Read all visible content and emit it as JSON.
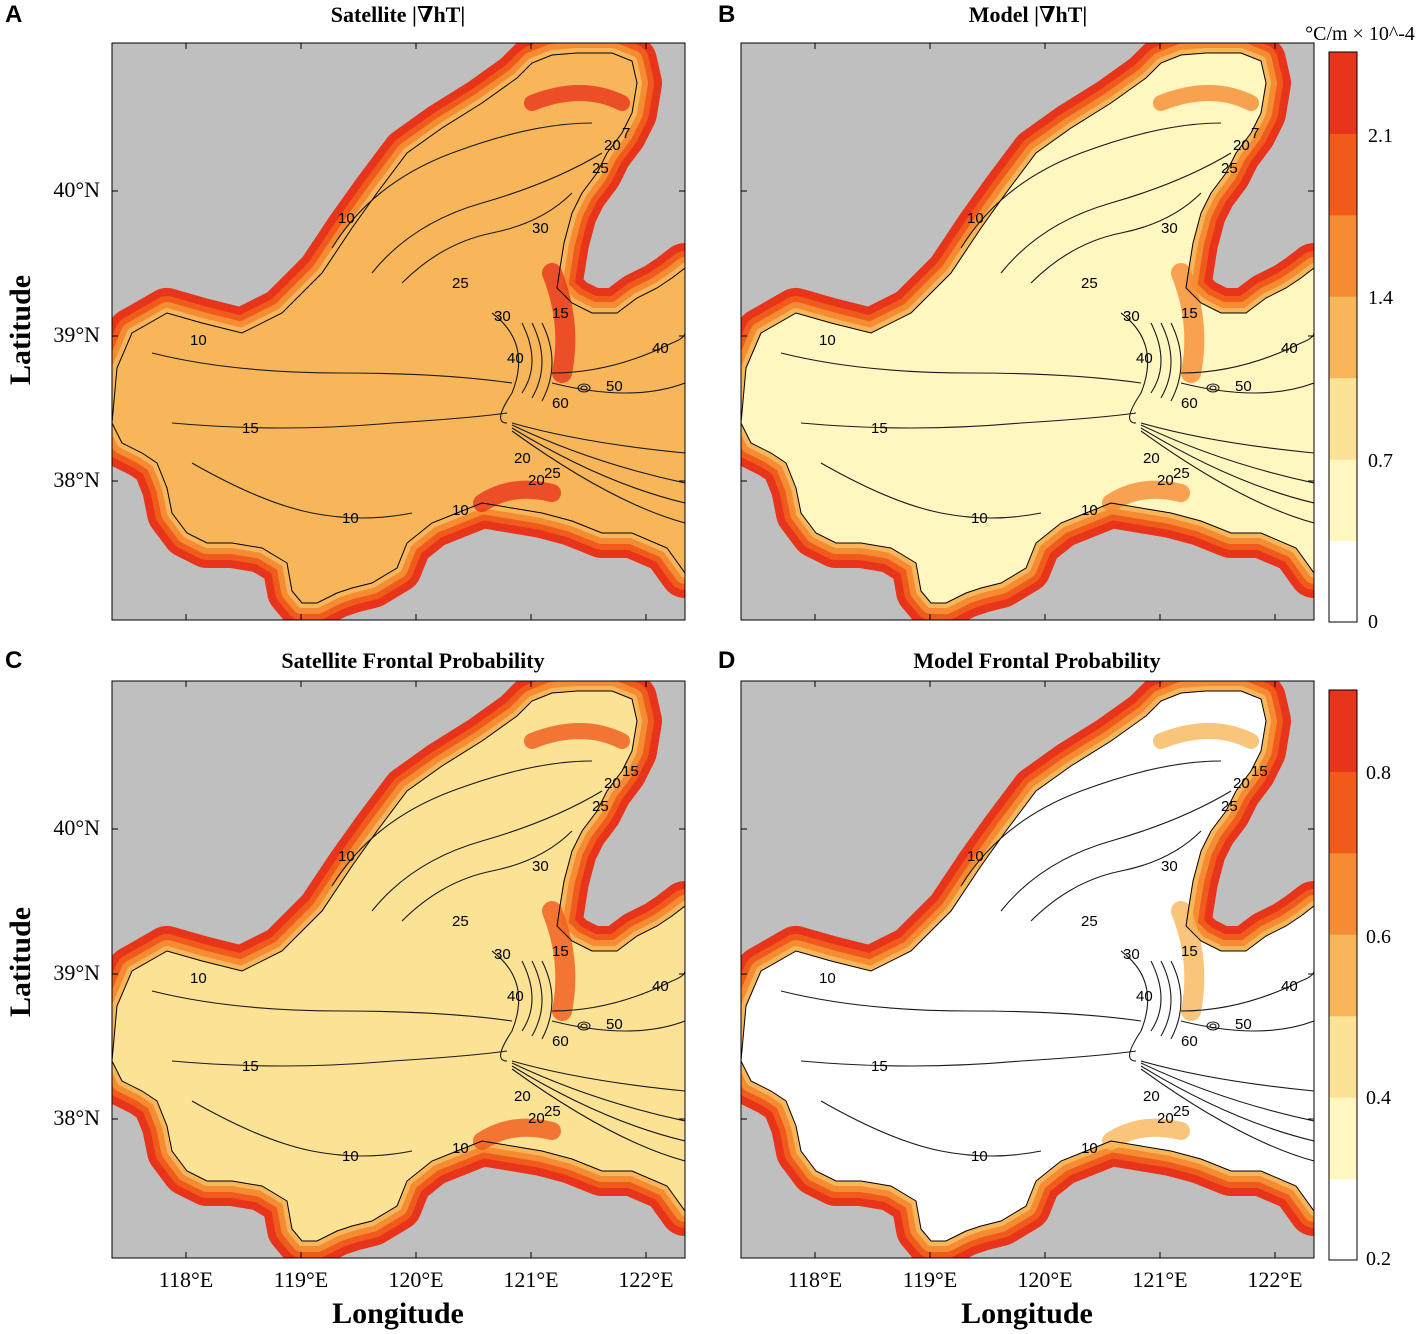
{
  "chart_data": [
    {
      "type": "heatmap",
      "panel": "A",
      "title": "Satellite |∇hT|",
      "xlabel": "",
      "ylabel": "Latitude",
      "xticks": [],
      "yticks": [
        "38°N",
        "39°N",
        "40°N"
      ],
      "xlim": [
        117.4,
        122.3
      ],
      "ylim": [
        37.1,
        41.1
      ],
      "colorbar": null,
      "contour_labels": [
        "10",
        "10",
        "10",
        "10",
        "15",
        "15",
        "20",
        "20",
        "20",
        "25",
        "25",
        "25",
        "30",
        "30",
        "40",
        "40",
        "50",
        "60",
        "7"
      ]
    },
    {
      "type": "heatmap",
      "panel": "B",
      "title": "Model |∇hT|",
      "xlabel": "",
      "ylabel": "",
      "xticks": [],
      "yticks": [],
      "xlim": [
        117.4,
        122.3
      ],
      "ylim": [
        37.1,
        41.1
      ],
      "colorbar": {
        "unit": "°C/m × 10^-4",
        "ticks": [
          "0",
          "0.7",
          "1.4",
          "2.1"
        ],
        "colors": [
          "#ffffff",
          "#fff6c0",
          "#fce294",
          "#f8b65a",
          "#f58c34",
          "#f05a1a",
          "#e8341a"
        ]
      },
      "contour_labels": [
        "10",
        "10",
        "10",
        "10",
        "15",
        "15",
        "20",
        "20",
        "20",
        "25",
        "25",
        "25",
        "30",
        "30",
        "40",
        "40",
        "50",
        "60",
        "7"
      ]
    },
    {
      "type": "heatmap",
      "panel": "C",
      "title": "Satellite Frontal Probability",
      "xlabel": "Longitude",
      "ylabel": "Latitude",
      "xticks": [
        "118°E",
        "119°E",
        "120°E",
        "121°E",
        "122°E"
      ],
      "yticks": [
        "38°N",
        "39°N",
        "40°N"
      ],
      "xlim": [
        117.4,
        122.3
      ],
      "ylim": [
        37.1,
        41.1
      ],
      "colorbar": null,
      "contour_labels": [
        "10",
        "10",
        "10",
        "10",
        "15",
        "15",
        "20",
        "20",
        "20",
        "25",
        "25",
        "25",
        "30",
        "30",
        "40",
        "40",
        "50",
        "60",
        "15"
      ]
    },
    {
      "type": "heatmap",
      "panel": "D",
      "title": "Model Frontal Probability",
      "xlabel": "Longitude",
      "ylabel": "",
      "xticks": [
        "118°E",
        "119°E",
        "120°E",
        "121°E",
        "122°E"
      ],
      "yticks": [],
      "xlim": [
        117.4,
        122.3
      ],
      "ylim": [
        37.1,
        41.1
      ],
      "colorbar": {
        "unit": "",
        "ticks": [
          "0.2",
          "0.4",
          "0.6",
          "0.8"
        ],
        "colors": [
          "#ffffff",
          "#fff6c0",
          "#fce294",
          "#f8b65a",
          "#f58c34",
          "#f05a1a",
          "#e8341a"
        ]
      },
      "contour_labels": [
        "10",
        "10",
        "10",
        "10",
        "15",
        "15",
        "20",
        "20",
        "20",
        "25",
        "25",
        "25",
        "30",
        "30",
        "40",
        "40",
        "50",
        "60",
        "15"
      ]
    }
  ],
  "colors": {
    "land": "#bfbfbf",
    "contour": "#1a1a1a",
    "background": "#ffffff"
  }
}
